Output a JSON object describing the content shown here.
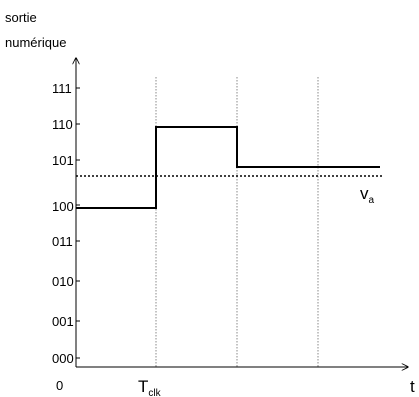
{
  "axis": {
    "y_title_line1": "sortie",
    "y_title_line2": "numérique",
    "x_label": "t",
    "origin_label": "0"
  },
  "y_ticks": [
    "111",
    "110",
    "101",
    "100",
    "011",
    "010",
    "001",
    "000"
  ],
  "clock": {
    "base": "T",
    "subscript": "clk"
  },
  "threshold": {
    "base": "v",
    "subscript": "a",
    "level": 4.6
  },
  "output_levels": [
    {
      "from_clk": 0,
      "to_clk": 1,
      "code": "100",
      "level": 4
    },
    {
      "from_clk": 1,
      "to_clk": 2,
      "code": "110",
      "level": 6
    },
    {
      "from_clk": 2,
      "to_clk": 3.8,
      "code": "101",
      "level": 5
    }
  ],
  "colors": {
    "line": "#000000",
    "grid": "#888888"
  }
}
